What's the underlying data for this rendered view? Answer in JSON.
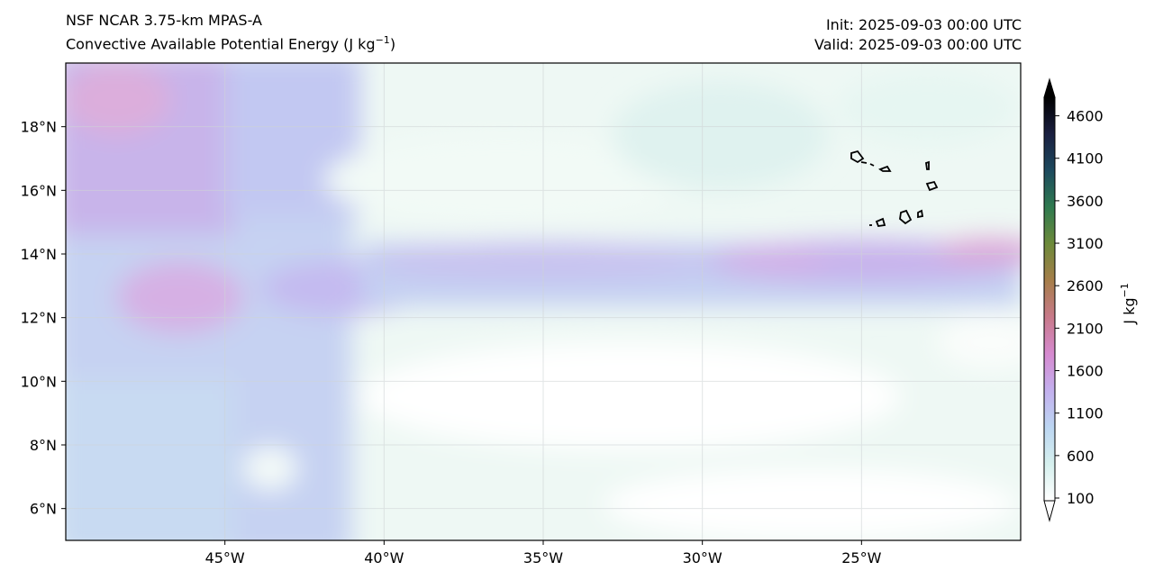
{
  "title": {
    "model": "NSF NCAR 3.75-km MPAS-A",
    "field": "Convective Available Potential Energy (J kg",
    "field_sup": "−1",
    "field_close": ")",
    "init": "Init: 2025-09-03 00:00 UTC",
    "valid": "Valid: 2025-09-03 00:00 UTC"
  },
  "map": {
    "extent": {
      "lon": [
        -50,
        -20
      ],
      "lat": [
        5,
        20
      ]
    },
    "lat_ticks": [
      {
        "v": 18,
        "label": "18°N"
      },
      {
        "v": 16,
        "label": "16°N"
      },
      {
        "v": 14,
        "label": "14°N"
      },
      {
        "v": 12,
        "label": "12°N"
      },
      {
        "v": 10,
        "label": "10°N"
      },
      {
        "v": 8,
        "label": "8°N"
      },
      {
        "v": 6,
        "label": "6°N"
      }
    ],
    "lon_ticks": [
      {
        "v": -45,
        "label": "45°W"
      },
      {
        "v": -40,
        "label": "40°W"
      },
      {
        "v": -35,
        "label": "35°W"
      },
      {
        "v": -30,
        "label": "30°W"
      },
      {
        "v": -25,
        "label": "25°W"
      }
    ]
  },
  "colorbar": {
    "label": "J kg",
    "label_sup": "−1",
    "ticks": [
      "100",
      "600",
      "1100",
      "1600",
      "2100",
      "2600",
      "3100",
      "3600",
      "4100",
      "4600"
    ],
    "range": [
      100,
      4850
    ],
    "colors": [
      "#ffffff",
      "#d6f0ee",
      "#bcd6f2",
      "#c3b0ee",
      "#d68ad0",
      "#c87a8a",
      "#a67e4a",
      "#6d8a3a",
      "#2f7a4f",
      "#1d4a5e",
      "#1a1f40",
      "#000000"
    ]
  }
}
